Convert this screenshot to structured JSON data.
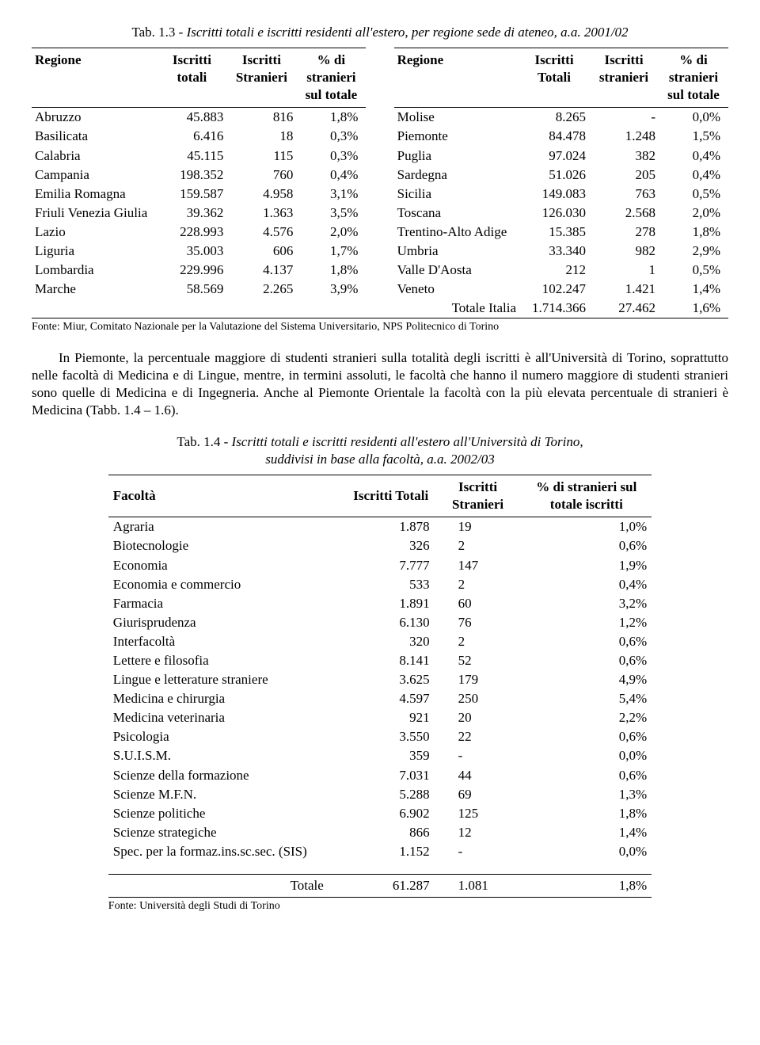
{
  "table1": {
    "caption_num": "Tab. 1.3 - ",
    "caption_title": "Iscritti totali e iscritti residenti all'estero, per regione sede di ateneo, a.a. 2001/02",
    "headers_left": [
      "Regione",
      "Iscritti totali",
      "Iscritti Stranieri",
      "% di stranieri sul totale"
    ],
    "headers_right": [
      "Regione",
      "Iscritti Totali",
      "Iscritti stranieri",
      "% di stranieri sul totale"
    ],
    "left_rows": [
      [
        "Abruzzo",
        "45.883",
        "816",
        "1,8%"
      ],
      [
        "Basilicata",
        "6.416",
        "18",
        "0,3%"
      ],
      [
        "Calabria",
        "45.115",
        "115",
        "0,3%"
      ],
      [
        "Campania",
        "198.352",
        "760",
        "0,4%"
      ],
      [
        "Emilia Romagna",
        "159.587",
        "4.958",
        "3,1%"
      ],
      [
        "Friuli Venezia Giulia",
        "39.362",
        "1.363",
        "3,5%"
      ],
      [
        "Lazio",
        "228.993",
        "4.576",
        "2,0%"
      ],
      [
        "Liguria",
        "35.003",
        "606",
        "1,7%"
      ],
      [
        "Lombardia",
        "229.996",
        "4.137",
        "1,8%"
      ],
      [
        "Marche",
        "58.569",
        "2.265",
        "3,9%"
      ]
    ],
    "right_rows": [
      [
        "Molise",
        "8.265",
        "-",
        "0,0%"
      ],
      [
        "Piemonte",
        "84.478",
        "1.248",
        "1,5%"
      ],
      [
        "Puglia",
        "97.024",
        "382",
        "0,4%"
      ],
      [
        "Sardegna",
        "51.026",
        "205",
        "0,4%"
      ],
      [
        "Sicilia",
        "149.083",
        "763",
        "0,5%"
      ],
      [
        "Toscana",
        "126.030",
        "2.568",
        "2,0%"
      ],
      [
        "Trentino-Alto Adige",
        "15.385",
        "278",
        "1,8%"
      ],
      [
        "Umbria",
        "33.340",
        "982",
        "2,9%"
      ],
      [
        "Valle D'Aosta",
        "212",
        "1",
        "0,5%"
      ],
      [
        "Veneto",
        "102.247",
        "1.421",
        "1,4%"
      ],
      [
        "Totale Italia",
        "1.714.366",
        "27.462",
        "1,6%"
      ]
    ],
    "source": "Fonte: Miur, Comitato Nazionale per la Valutazione del Sistema Universitario, NPS Politecnico di Torino"
  },
  "paragraph": "In Piemonte, la percentuale maggiore di studenti stranieri sulla totalità degli iscritti è all'Università di Torino, soprattutto nelle facoltà di Medicina e di Lingue, mentre, in termini assoluti, le facoltà che hanno il numero maggiore di studenti stranieri sono quelle di Medicina e di Ingegneria. Anche al Piemonte Orientale la facoltà con la più elevata percentuale di stranieri è Medicina (Tabb. 1.4 – 1.6).",
  "table2": {
    "caption_num": "Tab. 1.4 - ",
    "caption_title_line1": "Iscritti totali e iscritti residenti all'estero all'Università di Torino,",
    "caption_title_line2": "suddivisi in base alla facoltà, a.a. 2002/03",
    "headers": [
      "Facoltà",
      "Iscritti Totali",
      "Iscritti Stranieri",
      "% di stranieri sul totale iscritti"
    ],
    "rows": [
      [
        "Agraria",
        "1.878",
        "19",
        "1,0%"
      ],
      [
        "Biotecnologie",
        "326",
        "2",
        "0,6%"
      ],
      [
        "Economia",
        "7.777",
        "147",
        "1,9%"
      ],
      [
        "Economia e commercio",
        "533",
        "2",
        "0,4%"
      ],
      [
        "Farmacia",
        "1.891",
        "60",
        "3,2%"
      ],
      [
        "Giurisprudenza",
        "6.130",
        "76",
        "1,2%"
      ],
      [
        "Interfacoltà",
        "320",
        "2",
        "0,6%"
      ],
      [
        "Lettere e filosofia",
        "8.141",
        "52",
        "0,6%"
      ],
      [
        "Lingue e letterature straniere",
        "3.625",
        "179",
        "4,9%"
      ],
      [
        "Medicina e chirurgia",
        "4.597",
        "250",
        "5,4%"
      ],
      [
        "Medicina veterinaria",
        "921",
        "20",
        "2,2%"
      ],
      [
        "Psicologia",
        "3.550",
        "22",
        "0,6%"
      ],
      [
        "S.U.I.S.M.",
        "359",
        "-",
        "0,0%"
      ],
      [
        "Scienze della formazione",
        "7.031",
        "44",
        "0,6%"
      ],
      [
        "Scienze M.F.N.",
        "5.288",
        "69",
        "1,3%"
      ],
      [
        "Scienze politiche",
        "6.902",
        "125",
        "1,8%"
      ],
      [
        "Scienze strategiche",
        "866",
        "12",
        "1,4%"
      ],
      [
        "Spec. per la formaz.ins.sc.sec. (SIS)",
        "1.152",
        "-",
        "0,0%"
      ]
    ],
    "total": [
      "Totale",
      "61.287",
      "1.081",
      "1,8%"
    ],
    "source": "Fonte: Università degli Studi di Torino"
  }
}
